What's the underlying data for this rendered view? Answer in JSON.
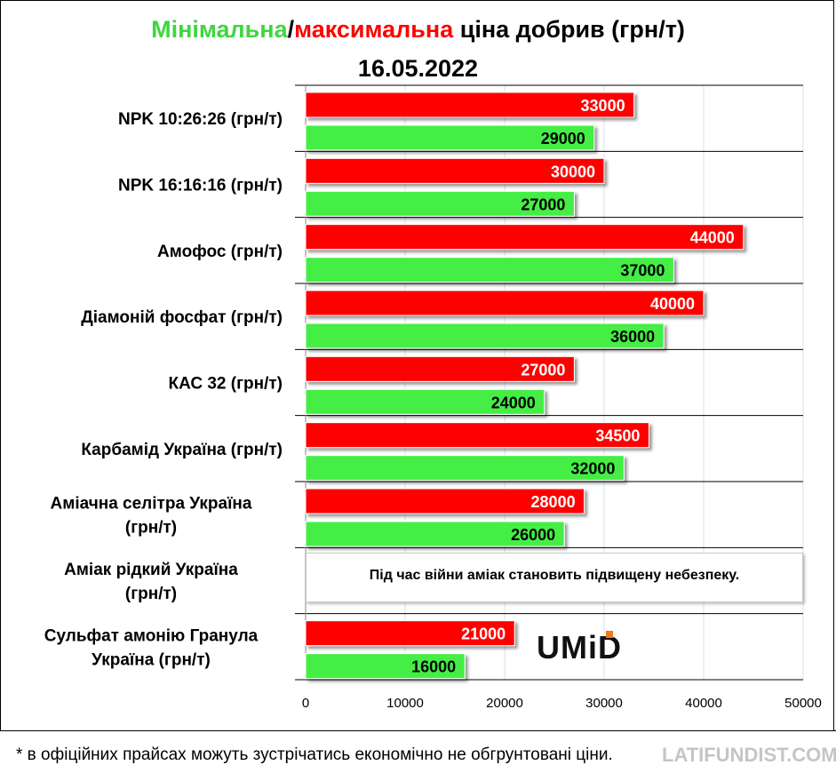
{
  "title": {
    "part_min": "Мінімальна",
    "slash": "/",
    "part_max": "максимальна",
    "part_rest": " ціна добрив (грн/т)"
  },
  "date": "16.05.2022",
  "note": "Під час війни аміак становить підвищену небезпеку.",
  "logo_text": "UMiD",
  "footnote": "* в офіційних прайсах можуть зустрічатись економічно не обгрунтовані ціни.",
  "watermark": "LATIFUNDIST.COM",
  "colors": {
    "max": "#ff0000",
    "min": "#44ee44",
    "grid": "#d6e2ee",
    "max_text": "#ffffff",
    "min_text": "#000000"
  },
  "chart_data": {
    "type": "bar",
    "orientation": "horizontal",
    "categories": [
      [
        "NPK 10:26:26 (грн/т)"
      ],
      [
        "NPK 16:16:16 (грн/т)"
      ],
      [
        "Амофос (грн/т)"
      ],
      [
        "Діамоній фосфат (грн/т)"
      ],
      [
        "КАС 32 (грн/т)"
      ],
      [
        "Карбамід Україна (грн/т)"
      ],
      [
        "Аміачна селітра Україна",
        "(грн/т)"
      ],
      [
        "Аміак рідкий Україна",
        "(грн/т)"
      ],
      [
        "Сульфат амонію Гранула",
        "Україна (грн/т)"
      ]
    ],
    "series": [
      {
        "values": [
          33000,
          30000,
          44000,
          40000,
          27000,
          34500,
          28000,
          null,
          21000
        ],
        "labels": [
          "33000",
          "30000",
          "44000",
          "40000",
          "27000",
          "34500",
          "28000",
          "",
          "21000"
        ]
      },
      {
        "values": [
          29000,
          27000,
          37000,
          36000,
          24000,
          32000,
          26000,
          null,
          16000
        ],
        "labels": [
          "29000",
          "27000",
          "37000",
          "36000",
          "24000",
          "32000",
          "26000",
          "",
          "16000"
        ]
      }
    ],
    "xlim": [
      0,
      50000
    ],
    "xticks": [
      0,
      10000,
      20000,
      30000,
      40000,
      50000
    ],
    "xtick_labels": [
      "0",
      "10000",
      "20000",
      "30000",
      "40000",
      "50000"
    ],
    "grid": true
  }
}
